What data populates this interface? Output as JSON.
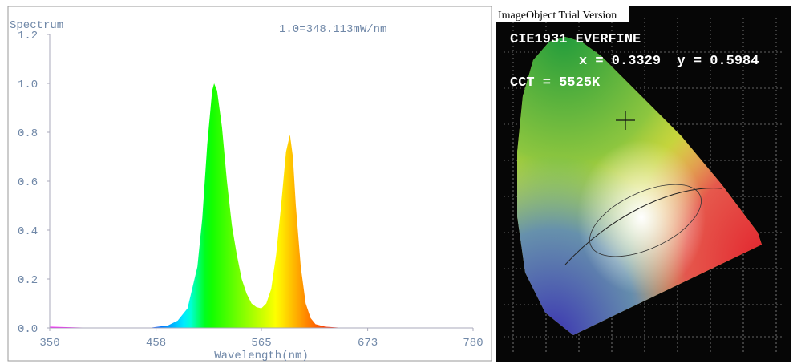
{
  "chart_data": {
    "type": "area",
    "title": "Spectrum",
    "annotation": "1.0=348.113mW/nm",
    "x_label": "Wavelength(nm)",
    "x": [
      350,
      400,
      450,
      460,
      470,
      480,
      490,
      500,
      505,
      510,
      515,
      517,
      520,
      525,
      530,
      535,
      540,
      545,
      550,
      555,
      560,
      565,
      570,
      575,
      580,
      585,
      590,
      594,
      597,
      600,
      605,
      610,
      615,
      620,
      630,
      650,
      700,
      780
    ],
    "values": [
      0.005,
      0,
      0,
      0.005,
      0.01,
      0.03,
      0.08,
      0.25,
      0.45,
      0.75,
      0.97,
      1.0,
      0.97,
      0.82,
      0.6,
      0.42,
      0.3,
      0.2,
      0.14,
      0.1,
      0.085,
      0.08,
      0.1,
      0.16,
      0.3,
      0.5,
      0.72,
      0.79,
      0.7,
      0.5,
      0.25,
      0.1,
      0.04,
      0.015,
      0.005,
      0,
      0,
      0
    ],
    "xlim": [
      350,
      780
    ],
    "xticks": [
      350,
      458,
      565,
      673,
      780
    ],
    "ylim": [
      0,
      1.2
    ],
    "yticks": [
      {
        "value": 0,
        "label": "0.0"
      },
      0.2,
      0.4,
      0.6,
      0.8,
      {
        "value": 1,
        "label": "1.0"
      },
      1.2
    ],
    "grid": false
  },
  "cie_panel": {
    "watermark": "ImageObject Trial Version",
    "heading": "CIE1931 EVERFINE",
    "coordinates": "x = 0.3329  y = 0.5984",
    "cct": "CCT = 5525K"
  }
}
